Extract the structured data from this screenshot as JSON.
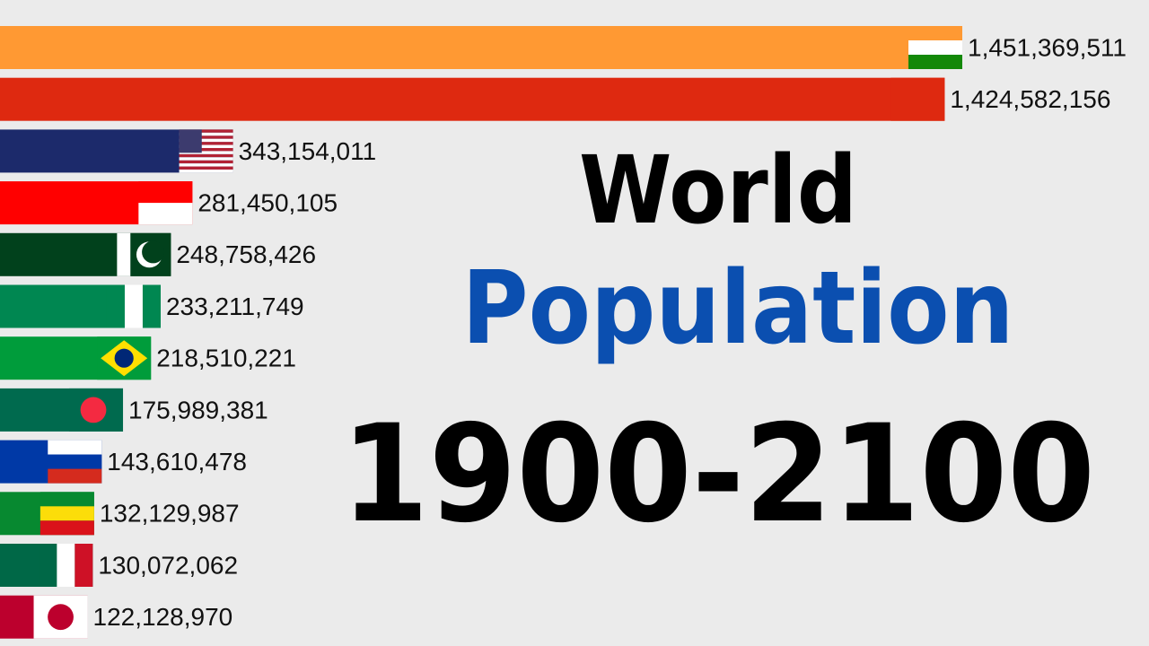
{
  "chart_data": {
    "type": "bar",
    "orientation": "horizontal",
    "title_lines": [
      "World",
      "Population",
      "1900-2100"
    ],
    "title_colors": [
      "#000000",
      "#0b4fb0",
      "#000000"
    ],
    "values": [
      1451369511,
      1424582156,
      343154011,
      281450105,
      248758426,
      233211749,
      218510221,
      175989381,
      143610478,
      132129987,
      130072062,
      122128970
    ],
    "value_labels": [
      "1,451,369,511",
      "1,424,582,156",
      "343,154,011",
      "281,450,105",
      "248,758,426",
      "233,211,749",
      "218,510,221",
      "175,989,381",
      "143,610,478",
      "132,129,987",
      "130,072,062",
      "122,128,970"
    ],
    "colors": [
      "#ff9933",
      "#de2910",
      "#1c2a6b",
      "#ff0000",
      "#01411c",
      "#008751",
      "#009c3b",
      "#006a4e",
      "#0039a6",
      "#078930",
      "#006847",
      "#bc002d"
    ]
  }
}
